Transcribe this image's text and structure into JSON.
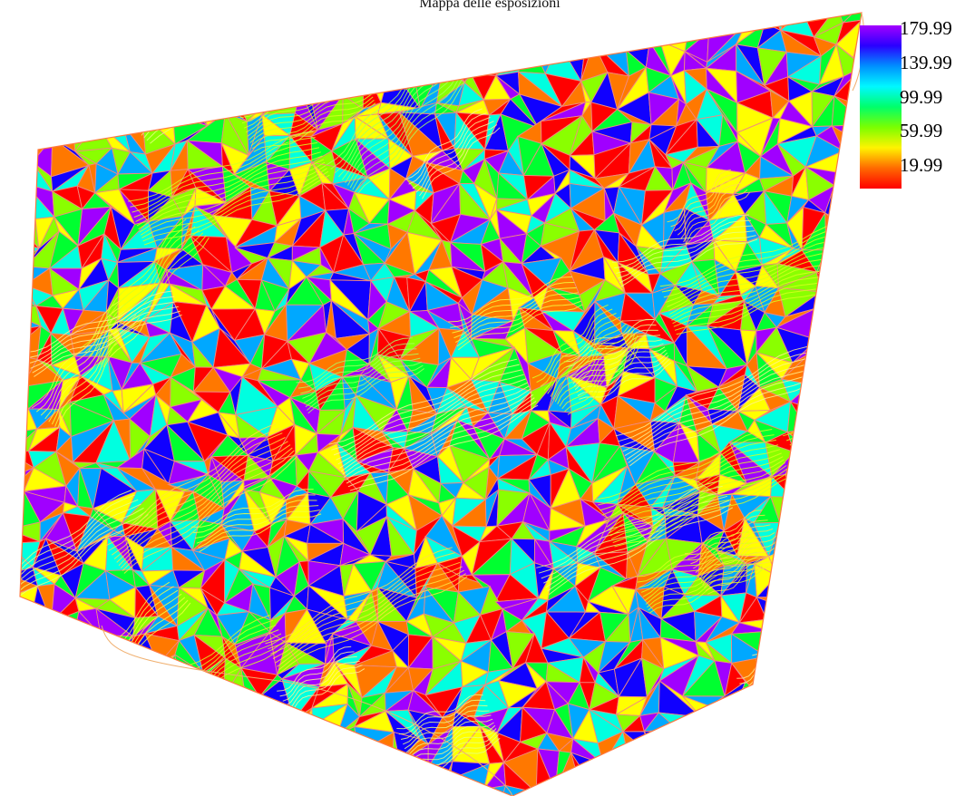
{
  "title": "Mappa delle esposizioni",
  "legend": {
    "labels": [
      "179.99",
      "139.99",
      "99.99",
      "59.99",
      "19.99"
    ],
    "gradient_stops": [
      "#a400ff",
      "#2a00ff",
      "#0090ff",
      "#00f8ff",
      "#00ff6a",
      "#7bff00",
      "#fff300",
      "#ff6a00",
      "#ff0000"
    ]
  },
  "map": {
    "palette": [
      "#ff0000",
      "#ff7800",
      "#ffff00",
      "#8aff00",
      "#00ff30",
      "#00ffe0",
      "#00a8ff",
      "#1000ff",
      "#a000ff"
    ],
    "mesh_line_color": "#f08a80",
    "contour_colors": [
      "#f4ff40",
      "#d8ff20",
      "#ffe040",
      "#a8ff60",
      "#e8ff80",
      "#fff090"
    ],
    "outline_color": "#ff7840"
  }
}
